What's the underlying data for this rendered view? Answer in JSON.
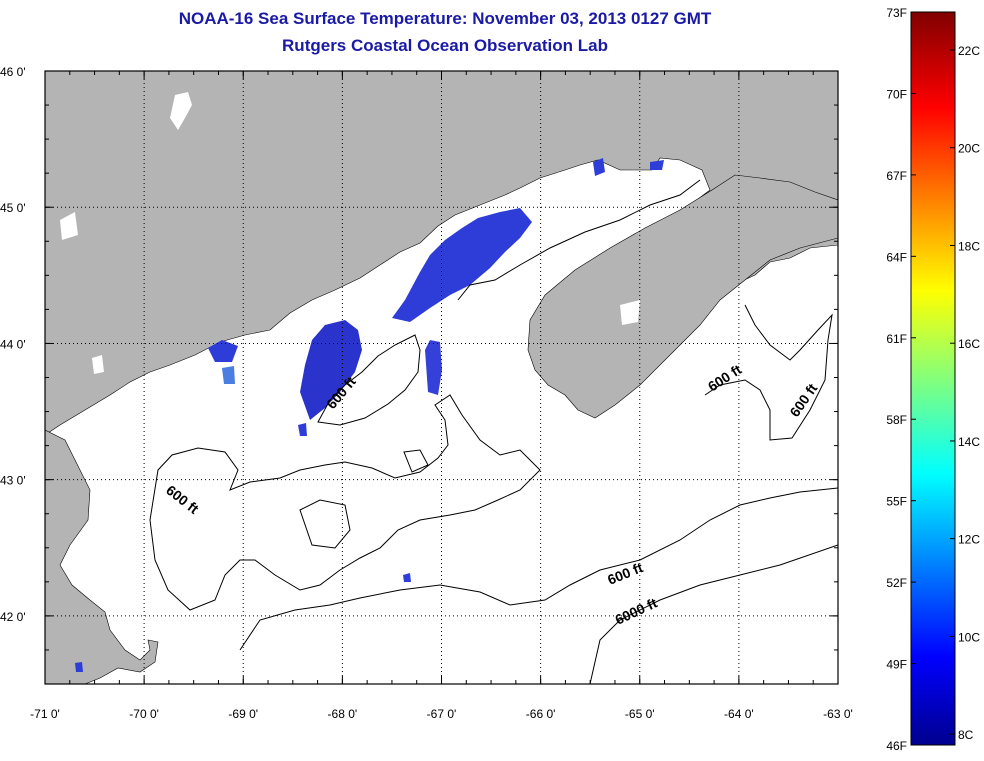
{
  "header": {
    "title": "NOAA-16 Sea Surface Temperature:  November 03, 2013 0127 GMT",
    "subtitle": "Rutgers Coastal Ocean Observation Lab"
  },
  "chart_data": {
    "type": "heatmap",
    "title": "NOAA-16 Sea Surface Temperature:  November 03, 2013 0127 GMT",
    "subtitle": "Rutgers Coastal Ocean Observation Lab",
    "x_ticks": [
      "-71 0'",
      "-70 0'",
      "-69 0'",
      "-68 0'",
      "-67 0'",
      "-66 0'",
      "-65 0'",
      "-64 0'",
      "-63 0'"
    ],
    "y_ticks": [
      "46 0'",
      "45 0'",
      "44 0'",
      "43 0'",
      "42 0'"
    ],
    "xlim": [
      -71,
      -63
    ],
    "ylim": [
      41.5,
      46
    ],
    "grid": true,
    "contour_labels": [
      "600 ft",
      "600 ft",
      "600 ft",
      "600 ft",
      "600 ft",
      "6000 ft"
    ],
    "colorbar": {
      "placement": "right",
      "f_labels": [
        "73F",
        "70F",
        "67F",
        "64F",
        "61F",
        "58F",
        "55F",
        "52F",
        "49F",
        "46F"
      ],
      "c_labels": [
        "22C",
        "20C",
        "18C",
        "16C",
        "14C",
        "12C",
        "10C",
        "8C"
      ],
      "range_f": [
        46,
        73
      ],
      "range_c": [
        8,
        22.8
      ]
    },
    "colors": {
      "land": "#b4b4b4",
      "water": "#ffffff",
      "cold_patch": "#2e3cd8",
      "title": "#1a1aa6"
    }
  }
}
